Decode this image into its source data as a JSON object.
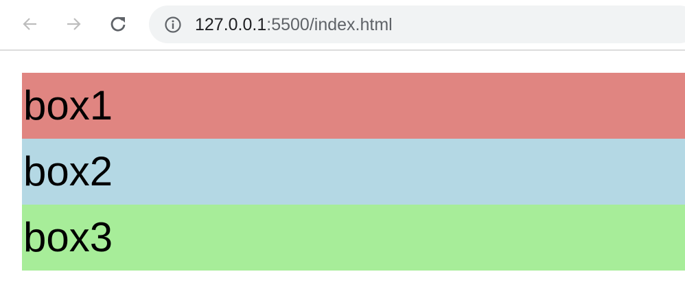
{
  "browser": {
    "url_host": "127.0.0.1",
    "url_rest": ":5500/index.html",
    "icons": [
      "back-arrow-icon",
      "forward-arrow-icon",
      "reload-icon",
      "info-icon"
    ]
  },
  "boxes": [
    {
      "label": "box1",
      "color": "#e08581"
    },
    {
      "label": "box2",
      "color": "#b4d8e4"
    },
    {
      "label": "box3",
      "color": "#a7ed99"
    }
  ]
}
